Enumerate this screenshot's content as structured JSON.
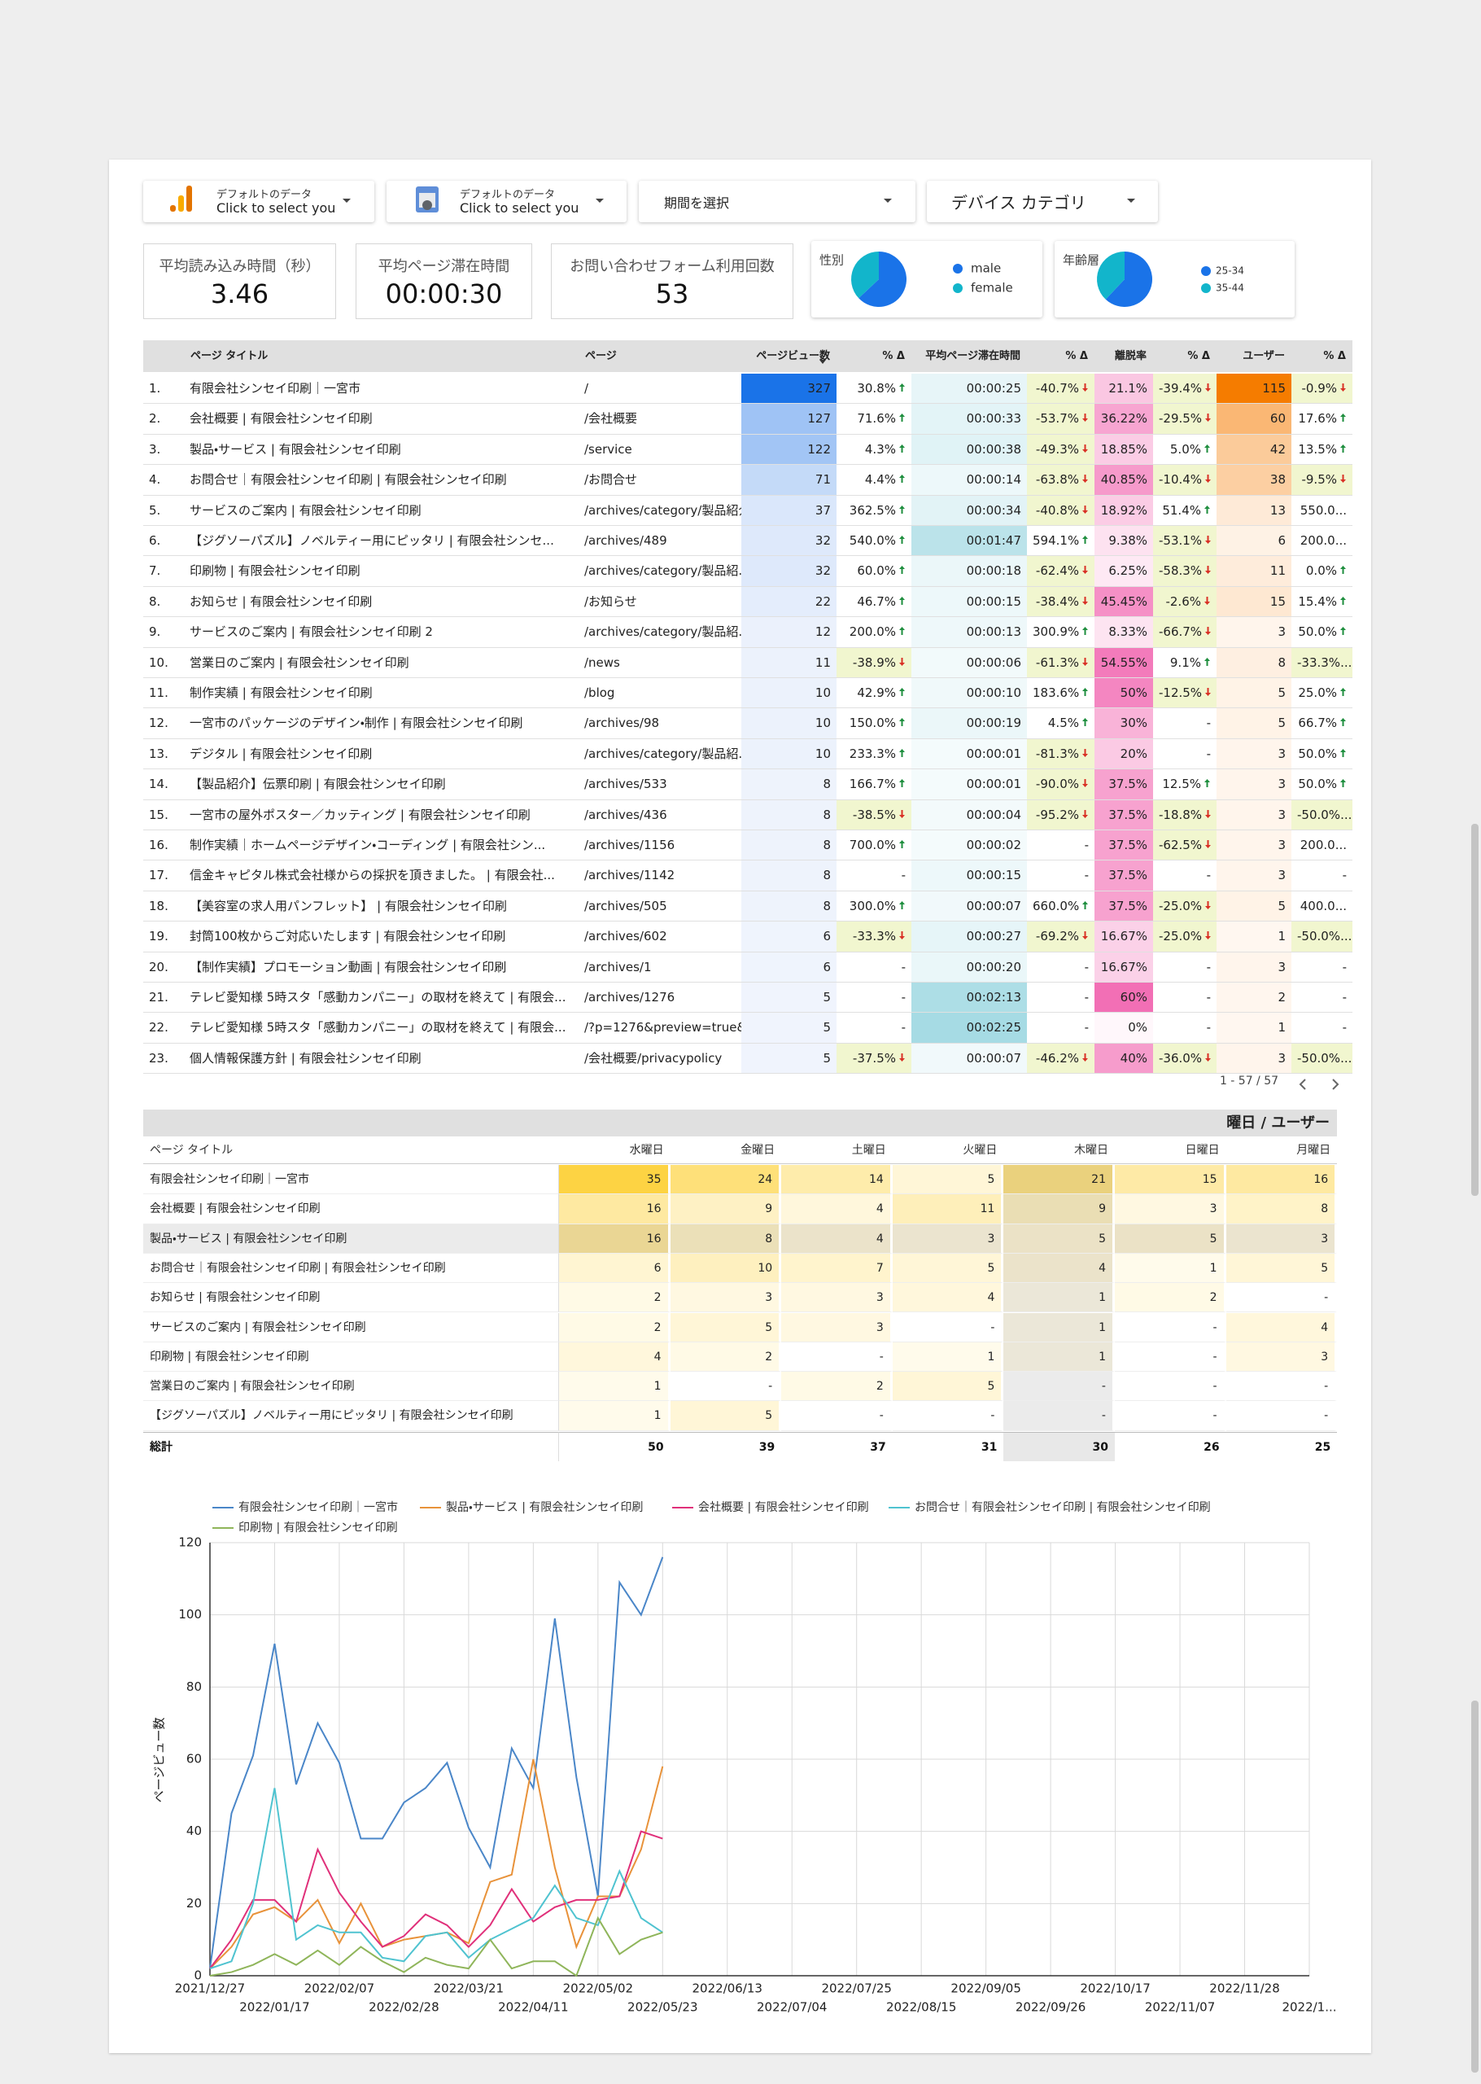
{
  "controls": {
    "data_sources": [
      {
        "line1": "デフォルトのデータ",
        "line2": "Click to select you"
      },
      {
        "line1": "デフォルトのデータ",
        "line2": "Click to select you"
      }
    ],
    "date_range": "期間を選択",
    "device": "デバイス カテゴリ"
  },
  "scorecards": [
    {
      "label": "平均読み込み時間（秒）",
      "value": "3.46"
    },
    {
      "label": "平均ページ滞在時間",
      "value": "00:00:30"
    },
    {
      "label": "お問い合わせフォーム利用回数",
      "value": "53"
    }
  ],
  "pies": [
    {
      "title": "性別",
      "labels": [
        "male",
        "female"
      ],
      "values": [
        63,
        37
      ],
      "colors": [
        "#1a73e8",
        "#12b5cb"
      ]
    },
    {
      "title": "年齢層",
      "labels": [
        "25-34",
        "35-44"
      ],
      "values": [
        62,
        38
      ],
      "colors": [
        "#1a73e8",
        "#12b5cb"
      ]
    }
  ],
  "table": {
    "headers": [
      "ページ タイトル",
      "ページ",
      "ページビュー数",
      "% Δ",
      "平均ページ滞在時間",
      "% Δ",
      "離脱率",
      "% Δ",
      "ユーザー",
      "% Δ"
    ],
    "rows": [
      [
        "1.",
        "有限会社シンセイ印刷｜一宮市",
        "/",
        "327",
        "30.8%",
        "00:00:25",
        "-40.7%",
        "21.1%",
        "-39.4%",
        "115",
        "-0.9%"
      ],
      [
        "2.",
        "会社概要 | 有限会社シンセイ印刷",
        "/会社概要",
        "127",
        "71.6%",
        "00:00:33",
        "-53.7%",
        "36.22%",
        "-29.5%",
        "60",
        "17.6%"
      ],
      [
        "3.",
        "製品・サービス | 有限会社シンセイ印刷",
        "/service",
        "122",
        "4.3%",
        "00:00:38",
        "-49.3%",
        "18.85%",
        "5.0%",
        "42",
        "13.5%"
      ],
      [
        "4.",
        "お問合せ｜有限会社シンセイ印刷 | 有限会社シンセイ印刷",
        "/お問合せ",
        "71",
        "4.4%",
        "00:00:14",
        "-63.8%",
        "40.85%",
        "-10.4%",
        "38",
        "-9.5%"
      ],
      [
        "5.",
        "サービスのご案内 | 有限会社シンセイ印刷",
        "/archives/category/製品紹介",
        "37",
        "362.5%",
        "00:00:34",
        "-40.8%",
        "18.92%",
        "51.4%",
        "13",
        "550.0..."
      ],
      [
        "6.",
        "【ジグソーパズル】ノベルティー用にピッタリ | 有限会社シンセ...",
        "/archives/489",
        "32",
        "540.0%",
        "00:01:47",
        "594.1%",
        "9.38%",
        "-53.1%",
        "6",
        "200.0..."
      ],
      [
        "7.",
        "印刷物 | 有限会社シンセイ印刷",
        "/archives/category/製品紹...",
        "32",
        "60.0%",
        "00:00:18",
        "-62.4%",
        "6.25%",
        "-58.3%",
        "11",
        "0.0%"
      ],
      [
        "8.",
        "お知らせ | 有限会社シンセイ印刷",
        "/お知らせ",
        "22",
        "46.7%",
        "00:00:15",
        "-38.4%",
        "45.45%",
        "-2.6%",
        "15",
        "15.4%"
      ],
      [
        "9.",
        "サービスのご案内 | 有限会社シンセイ印刷 2",
        "/archives/category/製品紹...",
        "12",
        "200.0%",
        "00:00:13",
        "300.9%",
        "8.33%",
        "-66.7%",
        "3",
        "50.0%"
      ],
      [
        "10.",
        "営業日のご案内 | 有限会社シンセイ印刷",
        "/news",
        "11",
        "-38.9%",
        "00:00:06",
        "-61.3%",
        "54.55%",
        "9.1%",
        "8",
        "-33.3%..."
      ],
      [
        "11.",
        "制作実績 | 有限会社シンセイ印刷",
        "/blog",
        "10",
        "42.9%",
        "00:00:10",
        "183.6%",
        "50%",
        "-12.5%",
        "5",
        "25.0%"
      ],
      [
        "12.",
        "一宮市のパッケージのデザイン・制作 | 有限会社シンセイ印刷",
        "/archives/98",
        "10",
        "150.0%",
        "00:00:19",
        "4.5%",
        "30%",
        "-",
        "5",
        "66.7%"
      ],
      [
        "13.",
        "デジタル | 有限会社シンセイ印刷",
        "/archives/category/製品紹...",
        "10",
        "233.3%",
        "00:00:01",
        "-81.3%",
        "20%",
        "-",
        "3",
        "50.0%"
      ],
      [
        "14.",
        "【製品紹介】伝票印刷 | 有限会社シンセイ印刷",
        "/archives/533",
        "8",
        "166.7%",
        "00:00:01",
        "-90.0%",
        "37.5%",
        "12.5%",
        "3",
        "50.0%"
      ],
      [
        "15.",
        "一宮市の屋外ポスター／カッティング | 有限会社シンセイ印刷",
        "/archives/436",
        "8",
        "-38.5%",
        "00:00:04",
        "-95.2%",
        "37.5%",
        "-18.8%",
        "3",
        "-50.0%..."
      ],
      [
        "16.",
        "制作実績｜ホームページデザイン・コーディング | 有限会社シン...",
        "/archives/1156",
        "8",
        "700.0%",
        "00:00:02",
        "-",
        "37.5%",
        "-62.5%",
        "3",
        "200.0..."
      ],
      [
        "17.",
        "信金キャピタル株式会社様からの採択を頂きました。 | 有限会社...",
        "/archives/1142",
        "8",
        "-",
        "00:00:15",
        "-",
        "37.5%",
        "-",
        "3",
        "-"
      ],
      [
        "18.",
        "【美容室の求人用パンフレット】 | 有限会社シンセイ印刷",
        "/archives/505",
        "8",
        "300.0%",
        "00:00:07",
        "660.0%",
        "37.5%",
        "-25.0%",
        "5",
        "400.0..."
      ],
      [
        "19.",
        "封筒100枚からご対応いたします | 有限会社シンセイ印刷",
        "/archives/602",
        "6",
        "-33.3%",
        "00:00:27",
        "-69.2%",
        "16.67%",
        "-25.0%",
        "1",
        "-50.0%..."
      ],
      [
        "20.",
        "【制作実績】プロモーション動画 | 有限会社シンセイ印刷",
        "/archives/1",
        "6",
        "-",
        "00:00:20",
        "-",
        "16.67%",
        "-",
        "3",
        "-"
      ],
      [
        "21.",
        "テレビ愛知様 5時スタ「感動カンパニー」の取材を終えて | 有限会...",
        "/archives/1276",
        "5",
        "-",
        "00:02:13",
        "-",
        "60%",
        "-",
        "2",
        "-"
      ],
      [
        "22.",
        "テレビ愛知様 5時スタ「感動カンパニー」の取材を終えて | 有限会...",
        "/?p=1276&preview=true&_th...",
        "5",
        "-",
        "00:02:25",
        "-",
        "0%",
        "-",
        "1",
        "-"
      ],
      [
        "23.",
        "個人情報保護方針 | 有限会社シンセイ印刷",
        "/会社概要/privacypolicy",
        "5",
        "-37.5%",
        "00:00:07",
        "-46.2%",
        "40%",
        "-36.0%",
        "3",
        "-50.0%..."
      ]
    ]
  },
  "pagination": "1 - 57 / 57",
  "pivot": {
    "title": "曜日 / ユーザー",
    "headers": [
      "ページ タイトル",
      "水曜日",
      "金曜日",
      "土曜日",
      "火曜日",
      "木曜日",
      "日曜日",
      "月曜日"
    ],
    "rows": [
      [
        "有限会社シンセイ印刷｜一宮市",
        "35",
        "24",
        "14",
        "5",
        "21",
        "15",
        "16"
      ],
      [
        "会社概要 | 有限会社シンセイ印刷",
        "16",
        "9",
        "4",
        "11",
        "9",
        "3",
        "8"
      ],
      [
        "製品・サービス | 有限会社シンセイ印刷",
        "16",
        "8",
        "4",
        "3",
        "5",
        "5",
        "3"
      ],
      [
        "お問合せ｜有限会社シンセイ印刷 | 有限会社シンセイ印刷",
        "6",
        "10",
        "7",
        "5",
        "4",
        "1",
        "5"
      ],
      [
        "お知らせ | 有限会社シンセイ印刷",
        "2",
        "3",
        "3",
        "4",
        "1",
        "2",
        "-"
      ],
      [
        "サービスのご案内 | 有限会社シンセイ印刷",
        "2",
        "5",
        "3",
        "-",
        "1",
        "-",
        "4"
      ],
      [
        "印刷物 | 有限会社シンセイ印刷",
        "4",
        "2",
        "-",
        "1",
        "1",
        "-",
        "3"
      ],
      [
        "営業日のご案内 | 有限会社シンセイ印刷",
        "1",
        "-",
        "2",
        "5",
        "-",
        "-",
        "-"
      ],
      [
        "【ジグソーパズル】ノベルティー用にピッタリ | 有限会社シンセイ印刷",
        "1",
        "5",
        "-",
        "-",
        "-",
        "-",
        "-"
      ]
    ],
    "total": [
      "総計",
      "50",
      "39",
      "37",
      "31",
      "30",
      "26",
      "25"
    ]
  },
  "chart_data": {
    "type": "line",
    "ylabel": "ページビュー数",
    "x": [
      "2021/12/27",
      "2022/01/03",
      "2022/01/10",
      "2022/01/17",
      "2022/01/24",
      "2022/01/31",
      "2022/02/07",
      "2022/02/14",
      "2022/02/21",
      "2022/02/28",
      "2022/03/07",
      "2022/03/14",
      "2022/03/21",
      "2022/03/28",
      "2022/04/04",
      "2022/04/11",
      "2022/04/18",
      "2022/04/25",
      "2022/05/02",
      "2022/05/09",
      "2022/05/16",
      "2022/05/23"
    ],
    "series": [
      {
        "name": "有限会社シンセイ印刷｜一宮市",
        "color": "#4a86c8",
        "values": [
          2,
          45,
          61,
          92,
          53,
          70,
          59,
          38,
          38,
          48,
          52,
          59,
          41,
          30,
          63,
          52,
          99,
          55,
          22,
          109,
          100,
          116
        ]
      },
      {
        "name": "製品・サービス | 有限会社シンセイ印刷",
        "color": "#e8923a",
        "values": [
          2,
          8,
          17,
          19,
          15,
          21,
          9,
          20,
          8,
          10,
          11,
          12,
          9,
          26,
          28,
          60,
          30,
          8,
          22,
          22,
          35,
          58
        ]
      },
      {
        "name": "会社概要 | 有限会社シンセイ印刷",
        "color": "#e0307a",
        "values": [
          2,
          10,
          21,
          21,
          15,
          35,
          23,
          15,
          8,
          11,
          17,
          14,
          8,
          14,
          24,
          15,
          19,
          21,
          21,
          22,
          40,
          38
        ]
      },
      {
        "name": "お問合せ｜有限会社シンセイ印刷 | 有限会社シンセイ印刷",
        "color": "#4fc3d0",
        "values": [
          2,
          4,
          20,
          52,
          10,
          14,
          12,
          12,
          5,
          4,
          11,
          12,
          5,
          10,
          13,
          16,
          25,
          16,
          14,
          29,
          16,
          12
        ]
      },
      {
        "name": "印刷物 | 有限会社シンセイ印刷",
        "color": "#8fb55a",
        "values": [
          0,
          1,
          3,
          6,
          3,
          7,
          3,
          8,
          4,
          1,
          5,
          3,
          2,
          10,
          2,
          4,
          4,
          0,
          16,
          6,
          10,
          12
        ]
      }
    ],
    "xlim": [
      "2021/12/27",
      "2022/12/19"
    ],
    "xticks": [
      "2021/12/27",
      "2022/01/17",
      "2022/02/07",
      "2022/02/28",
      "2022/03/21",
      "2022/04/11",
      "2022/05/02",
      "2022/05/23",
      "2022/06/13",
      "2022/07/04",
      "2022/07/25",
      "2022/08/15",
      "2022/09/05",
      "2022/09/26",
      "2022/10/17",
      "2022/11/07",
      "2022/11/28",
      {
        "value": "2022/12/19",
        "label": "2022/1..."
      }
    ],
    "ylim": [
      0,
      120
    ],
    "yticks": [
      0,
      20,
      40,
      60,
      80,
      100,
      120
    ],
    "grid": true
  }
}
